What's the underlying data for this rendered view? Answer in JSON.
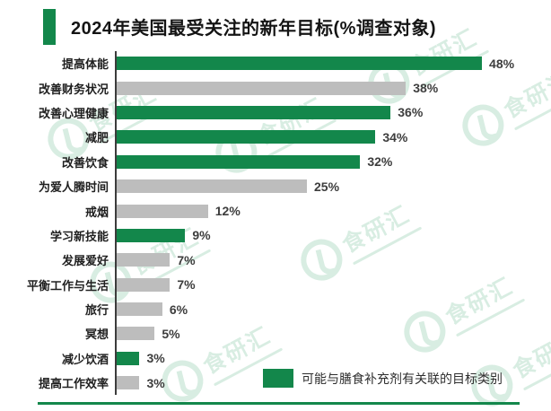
{
  "header": {
    "title": "2024年美国最受关注的新年目标(%调查对象)"
  },
  "chart_data": {
    "type": "bar",
    "orientation": "horizontal",
    "title": "2024年美国最受关注的新年目标(%调查对象)",
    "xlabel": "",
    "ylabel": "",
    "xlim": [
      0,
      48
    ],
    "grid": false,
    "value_suffix": "%",
    "categories": [
      "提高体能",
      "改善财务状况",
      "改善心理健康",
      "减肥",
      "改善饮食",
      "为爱人腾时间",
      "戒烟",
      "学习新技能",
      "发展爱好",
      "平衡工作与生活",
      "旅行",
      "冥想",
      "减少饮酒",
      "提高工作效率"
    ],
    "values": [
      48,
      38,
      36,
      34,
      32,
      25,
      12,
      9,
      7,
      7,
      6,
      5,
      3,
      3
    ],
    "highlighted": [
      true,
      false,
      true,
      true,
      true,
      false,
      false,
      true,
      false,
      false,
      false,
      false,
      true,
      false
    ],
    "legend_position": "bottom-right"
  },
  "legend": {
    "label": "可能与膳食补充剂有关联的目标类别"
  },
  "watermark": {
    "text": "食研汇"
  },
  "colors": {
    "highlight_green": "#13874b",
    "bar_gray": "#bdbdbd",
    "axis": "#3c3c3c",
    "watermark_green": "#2f9e66"
  }
}
